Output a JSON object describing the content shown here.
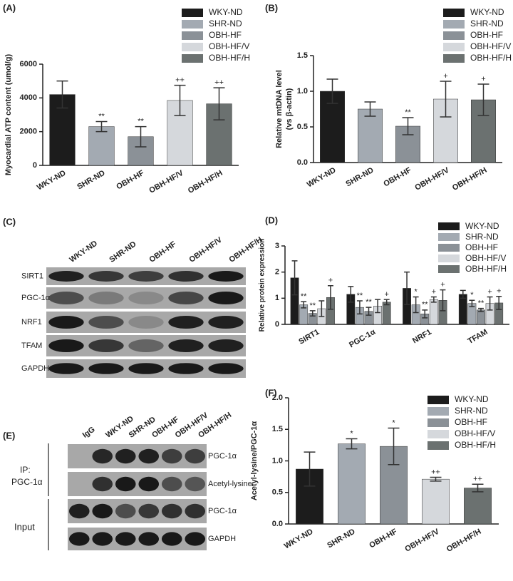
{
  "chart_data": [
    {
      "type": "bar",
      "panel": "(A)",
      "ylabel": "Myocardial ATP content (umol/g)",
      "categories": [
        "WKY-ND",
        "SHR-ND",
        "OBH-HF",
        "OBH-HF/V",
        "OBH-HF/H"
      ],
      "values": [
        4200,
        2300,
        1700,
        3850,
        3650
      ],
      "errors": [
        800,
        300,
        600,
        900,
        950
      ],
      "annotations": [
        null,
        "**",
        "**",
        "++",
        "++"
      ],
      "colors": [
        "#1c1c1c",
        "#a3aab2",
        "#8b9197",
        "#d5d8dc",
        "#6b7170"
      ],
      "ylim": [
        0,
        6000
      ],
      "yticks": [
        0,
        2000,
        4000,
        6000
      ]
    },
    {
      "type": "bar",
      "panel": "(B)",
      "ylabel": [
        "Relative mtDNA level",
        "(vs β-actin)"
      ],
      "categories": [
        "WKY-ND",
        "SHR-ND",
        "OBH-HF",
        "OBH-HF/V",
        "OBH-HF/H"
      ],
      "values": [
        1.0,
        0.75,
        0.51,
        0.89,
        0.88
      ],
      "errors": [
        0.17,
        0.1,
        0.12,
        0.25,
        0.22
      ],
      "annotations": [
        null,
        null,
        "**",
        "+",
        "+"
      ],
      "colors": [
        "#1c1c1c",
        "#a3aab2",
        "#8b9197",
        "#d5d8dc",
        "#6b7170"
      ],
      "ylim": [
        0,
        1.5
      ],
      "yticks": [
        {
          "value": 0,
          "label": "0.0"
        },
        {
          "value": 0.5,
          "label": "0.5"
        },
        {
          "value": 1,
          "label": "1.0"
        },
        {
          "value": 1.5,
          "label": "1.5"
        }
      ]
    },
    {
      "type": "grouped_bar",
      "panel": "(D)",
      "ylabel": "Relative protein expression",
      "categories": [
        "SIRT1",
        "PGC-1α",
        "NRF1",
        "TFAM"
      ],
      "series": [
        {
          "name": "WKY-ND",
          "color": "#1c1c1c",
          "values": [
            1.78,
            1.15,
            1.38,
            1.15
          ],
          "errors": [
            0.65,
            0.3,
            0.62,
            0.15
          ],
          "annotations": [
            null,
            null,
            null,
            null
          ]
        },
        {
          "name": "SHR-ND",
          "color": "#a3aab2",
          "values": [
            0.75,
            0.65,
            0.75,
            0.8
          ],
          "errors": [
            0.12,
            0.25,
            0.3,
            0.12
          ],
          "annotations": [
            "**",
            "**",
            "*",
            "*"
          ]
        },
        {
          "name": "OBH-HF",
          "color": "#8b9197",
          "values": [
            0.42,
            0.5,
            0.4,
            0.55
          ],
          "errors": [
            0.1,
            0.15,
            0.15,
            0.06
          ],
          "annotations": [
            "**",
            "**",
            "**",
            "**"
          ]
        },
        {
          "name": "OBH-HF/V",
          "color": "#d5d8dc",
          "values": [
            0.6,
            0.7,
            0.95,
            0.8
          ],
          "errors": [
            0.3,
            0.25,
            0.1,
            0.25
          ],
          "annotations": [
            null,
            null,
            "+",
            "+"
          ]
        },
        {
          "name": "OBH-HF/H",
          "color": "#6b7170",
          "values": [
            1.03,
            0.85,
            0.92,
            0.82
          ],
          "errors": [
            0.45,
            0.1,
            0.4,
            0.25
          ],
          "annotations": [
            "+",
            "+",
            "+",
            "+"
          ]
        }
      ],
      "ylim": [
        0,
        3
      ],
      "yticks": [
        0,
        1,
        2,
        3
      ]
    },
    {
      "type": "bar",
      "panel": "(F)",
      "ylabel": "Acetyl-lysine/PGC-1α",
      "categories": [
        "WKY-ND",
        "SHR-ND",
        "OBH-HF",
        "OBH-HF/V",
        "OBH-HF/H"
      ],
      "values": [
        0.87,
        1.27,
        1.23,
        0.71,
        0.57
      ],
      "errors": [
        0.27,
        0.08,
        0.29,
        0.03,
        0.06
      ],
      "annotations": [
        null,
        "*",
        "*",
        "++",
        "++"
      ],
      "colors": [
        "#1c1c1c",
        "#a3aab2",
        "#8b9197",
        "#d5d8dc",
        "#6b7170"
      ],
      "ylim": [
        0,
        2
      ],
      "yticks": [
        {
          "value": 0,
          "label": "0.0"
        },
        {
          "value": 0.5,
          "label": "0.5"
        },
        {
          "value": 1,
          "label": "1.0"
        },
        {
          "value": 1.5,
          "label": "1.5"
        },
        {
          "value": 2,
          "label": "2.0"
        }
      ]
    }
  ],
  "blots": [
    {
      "panel": "(C)",
      "lanes": [
        "WKY-ND",
        "SHR-ND",
        "OBH-HF",
        "OBH-HF/V",
        "OBH-HF/H"
      ],
      "rows": [
        "SIRT1",
        "PGC-1α",
        "NRF1",
        "TFAM",
        "GAPDH"
      ]
    },
    {
      "panel": "(E)",
      "lanes": [
        "IgG",
        "WKY-ND",
        "SHR-ND",
        "OBH-HF",
        "OBH-HF/V",
        "OBH-HF/H"
      ],
      "rows": [
        "PGC-1α",
        "Acetyl-lysine",
        "PGC-1α",
        "GAPDH"
      ],
      "side_labels": [
        "IP:",
        "PGC-1α",
        "Input"
      ]
    }
  ]
}
